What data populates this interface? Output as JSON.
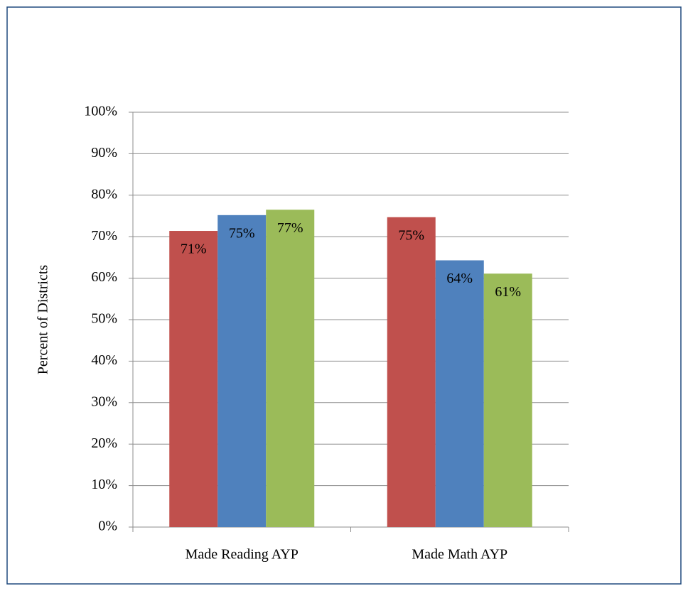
{
  "chart_data": {
    "type": "bar",
    "y_label": "Percent of Districts",
    "categories": [
      "Made Reading AYP",
      "Made Math AYP"
    ],
    "series": [
      {
        "color": "#c0504d",
        "values": [
          71.4,
          74.7
        ],
        "value_labels": [
          "71%",
          "75%"
        ]
      },
      {
        "color": "#4f81bd",
        "values": [
          75.2,
          64.3
        ],
        "value_labels": [
          "75%",
          "64%"
        ]
      },
      {
        "color": "#9bbb59",
        "values": [
          76.5,
          61.1
        ],
        "value_labels": [
          "77%",
          "61%"
        ]
      }
    ],
    "ylim": [
      0,
      100
    ],
    "yticks": [
      {
        "value": 0,
        "label": "0%"
      },
      {
        "value": 10,
        "label": "10%"
      },
      {
        "value": 20,
        "label": "20%"
      },
      {
        "value": 30,
        "label": "30%"
      },
      {
        "value": 40,
        "label": "40%"
      },
      {
        "value": 50,
        "label": "50%"
      },
      {
        "value": 60,
        "label": "60%"
      },
      {
        "value": 70,
        "label": "70%"
      },
      {
        "value": 80,
        "label": "80%"
      },
      {
        "value": 90,
        "label": "90%"
      },
      {
        "value": 100,
        "label": "100%"
      }
    ],
    "grid": true
  }
}
